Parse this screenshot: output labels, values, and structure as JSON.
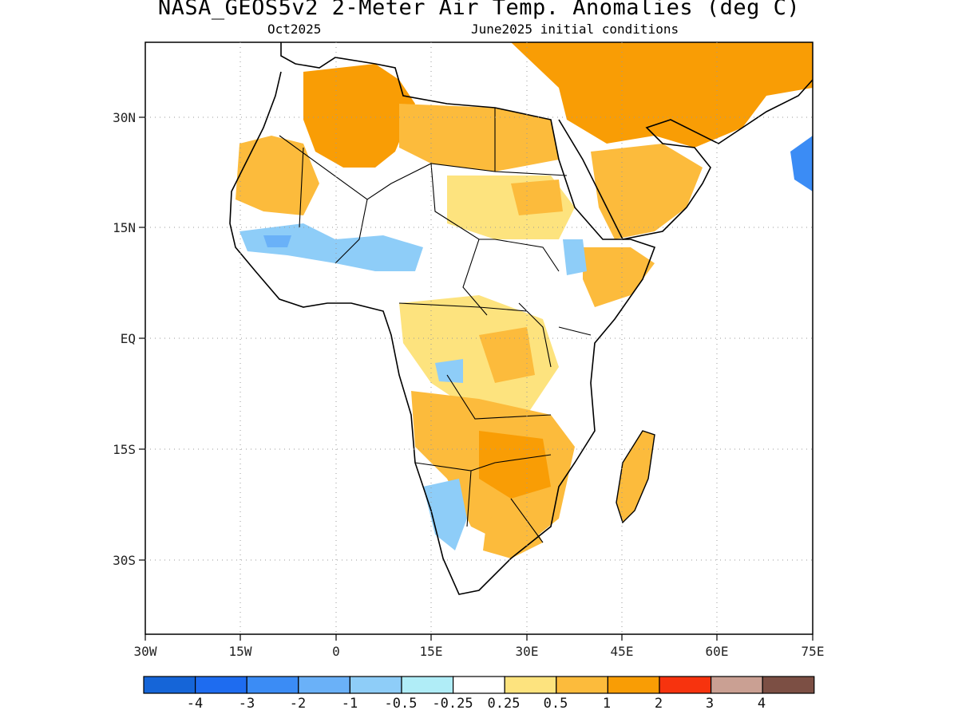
{
  "header": {
    "title": "NASA_GEOS5v2 2-Meter Air Temp. Anomalies (deg C)",
    "month": "Oct2025",
    "init": "June2025 initial conditions"
  },
  "axes": {
    "lon_labels": [
      "30W",
      "15W",
      "0",
      "15E",
      "30E",
      "45E",
      "60E",
      "75E"
    ],
    "lat_labels": [
      "30N",
      "15N",
      "EQ",
      "15S",
      "30S"
    ]
  },
  "colorbar": {
    "colors": [
      "#1565d8",
      "#1e6cf0",
      "#3b8cf5",
      "#6ab1f8",
      "#8ecdf8",
      "#b0edf7",
      "#ffffff",
      "#fde37e",
      "#fcbb3c",
      "#f99d05",
      "#f7330e",
      "#caa093",
      "#7c4f44"
    ],
    "labels": [
      "-4",
      "-3",
      "-2",
      "-1",
      "-0.5",
      "-0.25",
      "0.25",
      "0.5",
      "1",
      "2",
      "3",
      "4"
    ]
  }
}
